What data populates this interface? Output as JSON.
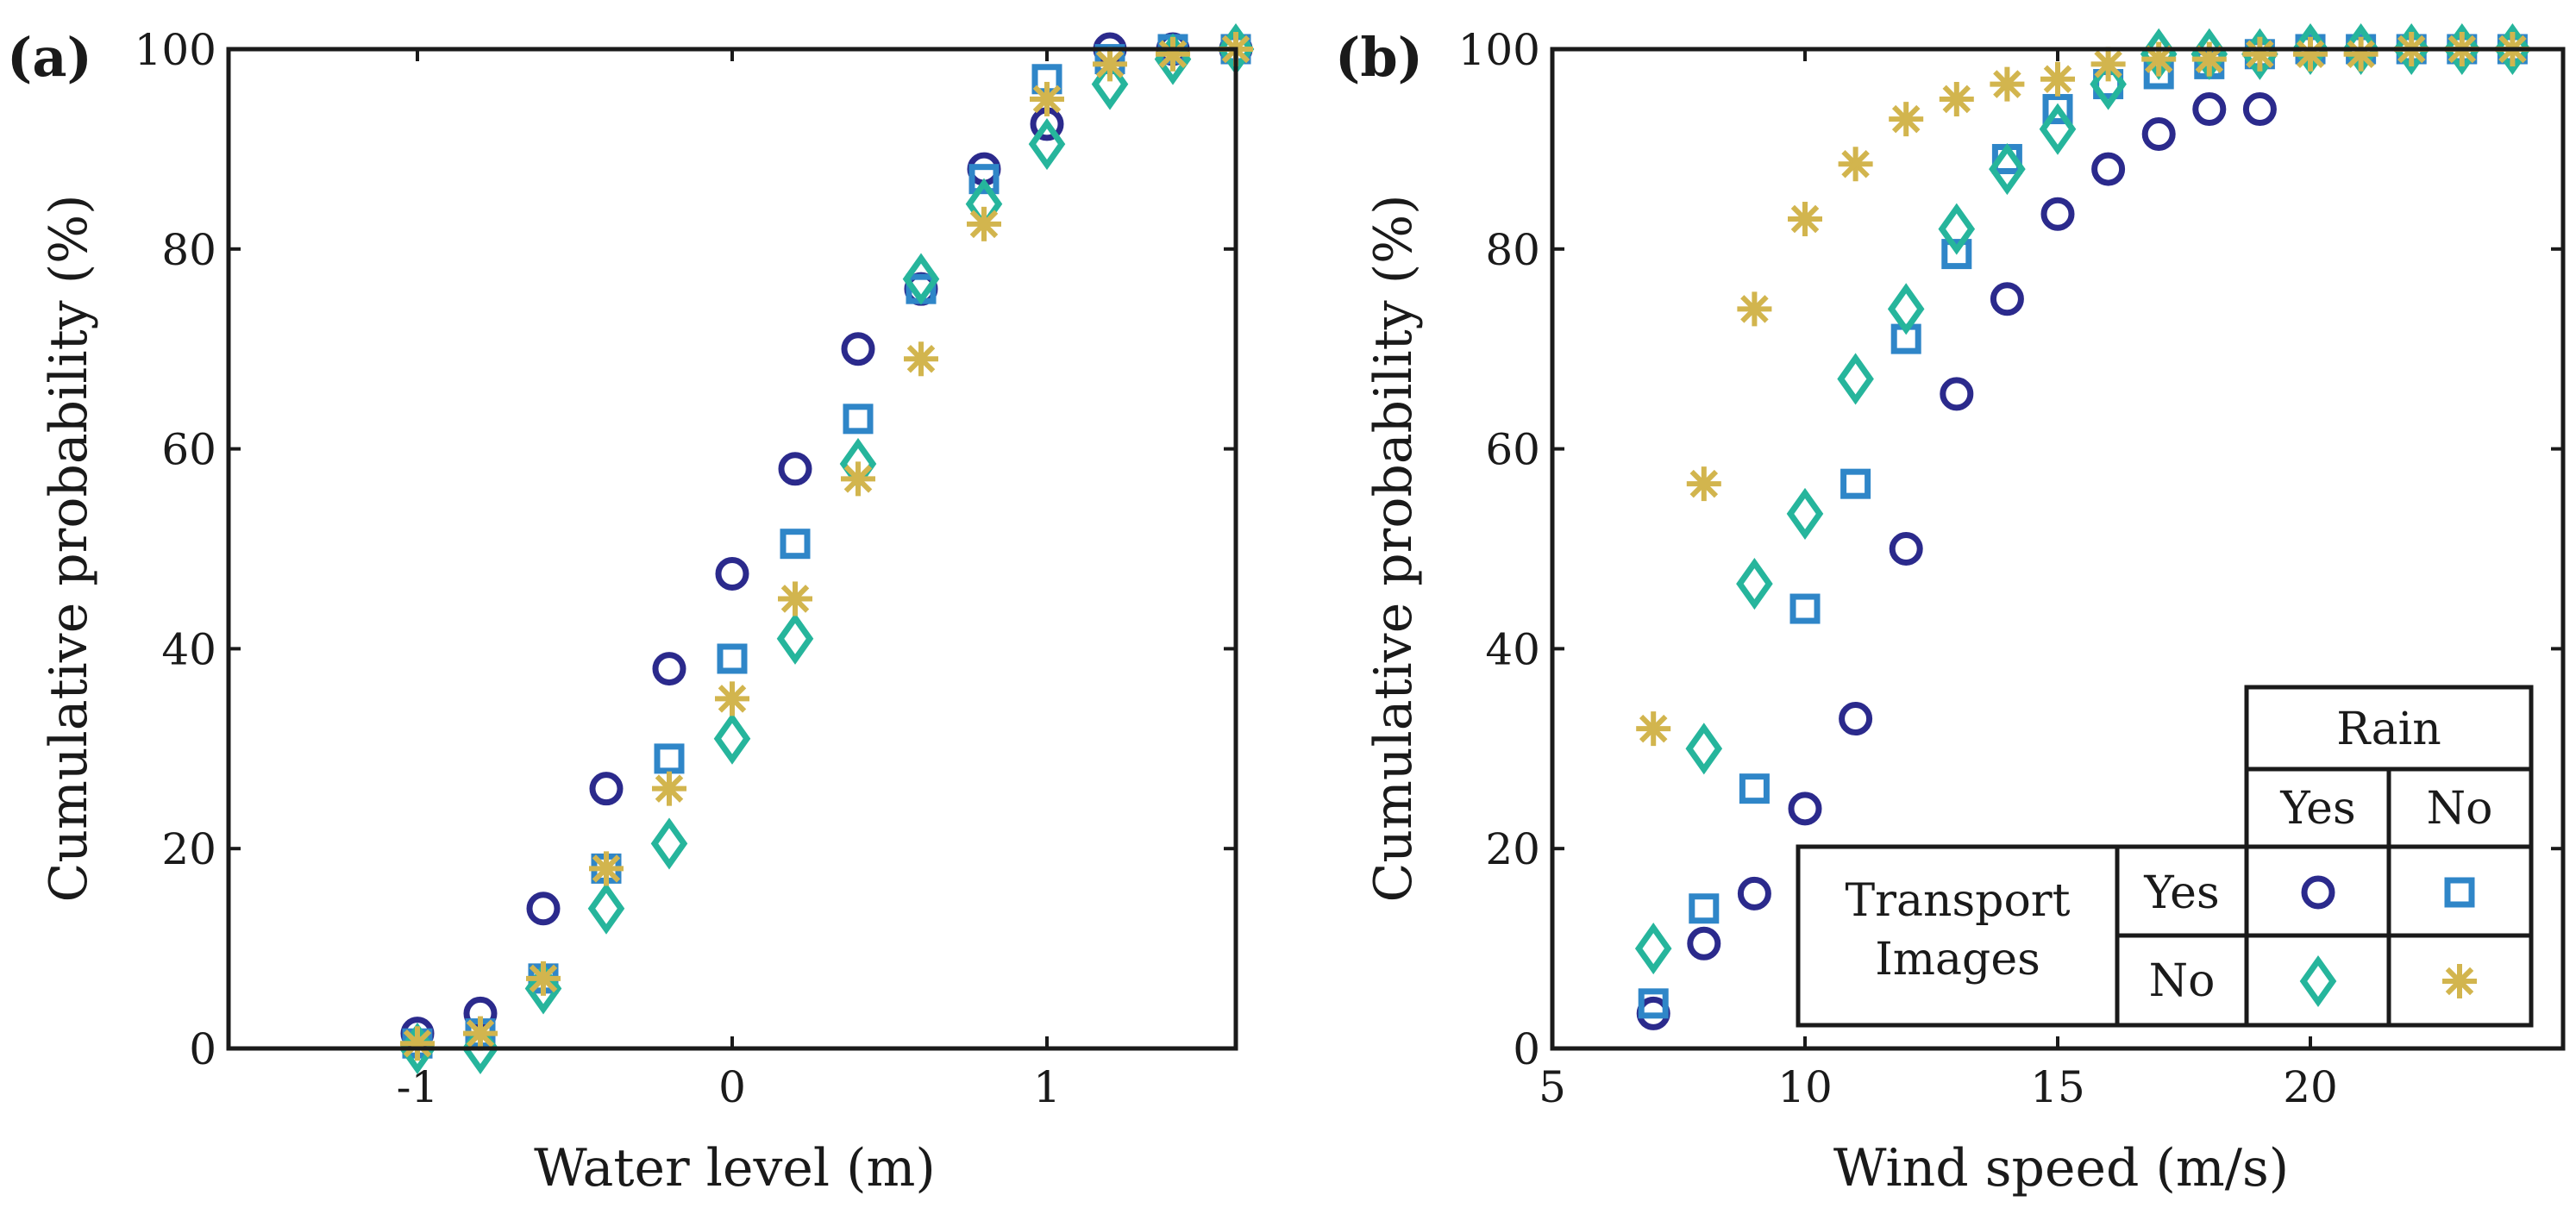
{
  "colors": {
    "yes_yes": "#2b2a8c",
    "yes_no": "#2f86c8",
    "no_yes": "#26b59c",
    "no_no": "#d2b54e",
    "axis": "#1a1a1a"
  },
  "chart_data": [
    {
      "type": "scatter",
      "panel_label": "(a)",
      "xlabel": "Water level (m)",
      "ylabel": "Cumulative probability (%)",
      "xlim": [
        -1.6,
        1.6
      ],
      "ylim": [
        0,
        100
      ],
      "xticks": [
        -1,
        0,
        1
      ],
      "xtick_labels": [
        "-1",
        "0",
        "1"
      ],
      "yticks": [
        0,
        20,
        40,
        60,
        80,
        100
      ],
      "ytick_labels": [
        "0",
        "20",
        "40",
        "60",
        "80",
        "100"
      ],
      "series": [
        {
          "name": "Transport Yes / Rain Yes",
          "marker": "circle",
          "color_key": "yes_yes",
          "x": [
            -1.0,
            -0.8,
            -0.6,
            -0.4,
            -0.2,
            0.0,
            0.2,
            0.4,
            0.6,
            0.8,
            1.0,
            1.2,
            1.4,
            1.6
          ],
          "y": [
            1.5,
            3.5,
            14,
            26,
            38,
            47.5,
            58,
            70,
            76,
            88,
            92.5,
            100,
            100,
            100
          ]
        },
        {
          "name": "Transport Yes / Rain No",
          "marker": "square",
          "color_key": "yes_no",
          "x": [
            -1.0,
            -0.8,
            -0.6,
            -0.4,
            -0.2,
            0.0,
            0.2,
            0.4,
            0.6,
            0.8,
            1.0,
            1.2,
            1.4,
            1.6
          ],
          "y": [
            0.5,
            1.5,
            7,
            18,
            29,
            39,
            50.5,
            63,
            76,
            87,
            97,
            99,
            100,
            100
          ]
        },
        {
          "name": "Transport No / Rain Yes",
          "marker": "diamond",
          "color_key": "no_yes",
          "x": [
            -1.0,
            -0.8,
            -0.6,
            -0.4,
            -0.2,
            0.0,
            0.2,
            0.4,
            0.6,
            0.8,
            1.0,
            1.2,
            1.4,
            1.6
          ],
          "y": [
            0,
            0,
            6,
            14,
            20.5,
            31,
            41,
            58.5,
            77,
            84.5,
            90.5,
            96.5,
            99,
            100
          ]
        },
        {
          "name": "Transport No / Rain No",
          "marker": "star",
          "color_key": "no_no",
          "x": [
            -1.0,
            -0.8,
            -0.6,
            -0.4,
            -0.2,
            0.0,
            0.2,
            0.4,
            0.6,
            0.8,
            1.0,
            1.2,
            1.4,
            1.6
          ],
          "y": [
            0.5,
            1.5,
            7,
            18,
            26,
            35,
            45,
            57,
            69,
            82.5,
            95,
            98.5,
            99.5,
            100
          ]
        }
      ]
    },
    {
      "type": "scatter",
      "panel_label": "(b)",
      "xlabel": "Wind speed (m/s)",
      "ylabel": "Cumulative probability (%)",
      "xlim": [
        5,
        25
      ],
      "ylim": [
        0,
        100
      ],
      "xticks": [
        5,
        10,
        15,
        20
      ],
      "xtick_labels": [
        "5",
        "10",
        "15",
        "20"
      ],
      "yticks": [
        0,
        20,
        40,
        60,
        80,
        100
      ],
      "ytick_labels": [
        "0",
        "20",
        "40",
        "60",
        "80",
        "100"
      ],
      "series": [
        {
          "name": "Transport Yes / Rain Yes",
          "marker": "circle",
          "color_key": "yes_yes",
          "x": [
            7,
            8,
            9,
            10,
            11,
            12,
            13,
            14,
            15,
            16,
            17,
            18,
            19
          ],
          "y": [
            3.5,
            10.5,
            15.5,
            24,
            33,
            50,
            65.5,
            75,
            83.5,
            88,
            91.5,
            94,
            94
          ]
        },
        {
          "name": "Transport Yes / Rain No",
          "marker": "square",
          "color_key": "yes_no",
          "x": [
            7,
            8,
            9,
            10,
            11,
            12,
            13,
            14,
            15,
            16,
            17,
            18,
            19,
            20,
            21,
            22,
            23,
            24
          ],
          "y": [
            4.5,
            14,
            26,
            44,
            56.5,
            71,
            79.5,
            89,
            94,
            96.5,
            97.5,
            98.5,
            99.5,
            100,
            100,
            100,
            100,
            100
          ]
        },
        {
          "name": "Transport No / Rain Yes",
          "marker": "diamond",
          "color_key": "no_yes",
          "x": [
            7,
            8,
            9,
            10,
            11,
            12,
            13,
            14,
            15,
            16,
            17,
            18,
            19,
            20,
            21,
            22,
            23,
            24
          ],
          "y": [
            10,
            30,
            46.5,
            53.5,
            67,
            74,
            82,
            88,
            92,
            96.5,
            99.5,
            99.5,
            99.5,
            100,
            100,
            100,
            100,
            100
          ]
        },
        {
          "name": "Transport No / Rain No",
          "marker": "star",
          "color_key": "no_no",
          "x": [
            7,
            8,
            9,
            10,
            11,
            12,
            13,
            14,
            15,
            16,
            17,
            18,
            19,
            20,
            21,
            22,
            23,
            24
          ],
          "y": [
            32,
            56.5,
            74,
            83,
            88.5,
            93,
            95,
            96.5,
            97,
            98.5,
            99,
            99,
            99.5,
            99.5,
            99.5,
            100,
            100,
            100
          ]
        }
      ],
      "legend": {
        "placement": "bottom-right",
        "rain_header": "Rain",
        "rain_yes": "Yes",
        "rain_no": "No",
        "transport_line1": "Transport",
        "transport_line2": "Images",
        "transport_yes": "Yes",
        "transport_no": "No"
      }
    }
  ]
}
